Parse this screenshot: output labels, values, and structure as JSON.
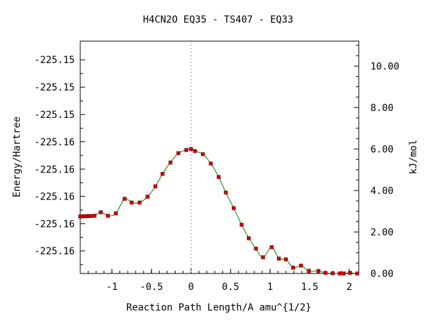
{
  "chart_data": {
    "type": "line",
    "title": "H4CN2O    EQ35 - TS407 - EQ33",
    "xlabel": "Reaction Path Length/A amu^{1/2}",
    "ylabel": "Energy/Hartree",
    "y2label": "kJ/mol",
    "xlim": [
      -1.4,
      2.12
    ],
    "x_ticks": [
      -1,
      -0.5,
      0,
      0.5,
      1,
      1.5,
      2
    ],
    "x_tick_labels": [
      "-1",
      "-0.5",
      "0",
      "0.5",
      "1",
      "1.5",
      "2"
    ],
    "y_left_ticks": [
      {
        "label": "-225.15",
        "kjmol": 10.3
      },
      {
        "label": "-225.15",
        "kjmol": 8.98
      },
      {
        "label": "-225.15",
        "kjmol": 7.66
      },
      {
        "label": "-225.16",
        "kjmol": 6.35
      },
      {
        "label": "-225.16",
        "kjmol": 5.03
      },
      {
        "label": "-225.16",
        "kjmol": 3.72
      },
      {
        "label": "-225.16",
        "kjmol": 2.4
      },
      {
        "label": "-225.16",
        "kjmol": 1.09
      }
    ],
    "y_right_ticks": [
      0,
      2,
      4,
      6,
      8,
      10
    ],
    "y_right_tick_labels": [
      "0.00",
      "2.00",
      "4.00",
      "6.00",
      "8.00",
      "10.00"
    ],
    "ylim_kjmol": [
      0,
      11.2
    ],
    "ts_marker_x": 0,
    "grid": false,
    "series": [
      {
        "x": [
          -1.4,
          -1.38,
          -1.36,
          -1.33,
          -1.3,
          -1.27,
          -1.22,
          -1.14,
          -1.05,
          -0.95,
          -0.84,
          -0.75,
          -0.65,
          -0.55,
          -0.45,
          -0.36,
          -0.26,
          -0.16,
          -0.06,
          0,
          0.05,
          0.15,
          0.25,
          0.35,
          0.44,
          0.54,
          0.64,
          0.73,
          0.82,
          0.91,
          1.02,
          1.11,
          1.2,
          1.29,
          1.39,
          1.49,
          1.61,
          1.7,
          1.79,
          1.88,
          1.93,
          2.01,
          2.1
        ],
        "y": [
          2.75,
          2.75,
          2.76,
          2.76,
          2.77,
          2.77,
          2.78,
          2.95,
          2.78,
          2.9,
          3.6,
          3.42,
          3.42,
          3.7,
          4.2,
          4.8,
          5.35,
          5.8,
          5.95,
          6.0,
          5.9,
          5.75,
          5.3,
          4.65,
          3.9,
          3.15,
          2.35,
          1.7,
          1.2,
          0.78,
          1.27,
          0.72,
          0.68,
          0.28,
          0.38,
          0.12,
          0.12,
          0.03,
          0.01,
          0.0,
          0.0,
          0.03,
          0.0
        ]
      }
    ],
    "colors": {
      "line": "#008000",
      "marker": "#cc0000",
      "dashed": "#999999",
      "axis": "#000000"
    }
  }
}
